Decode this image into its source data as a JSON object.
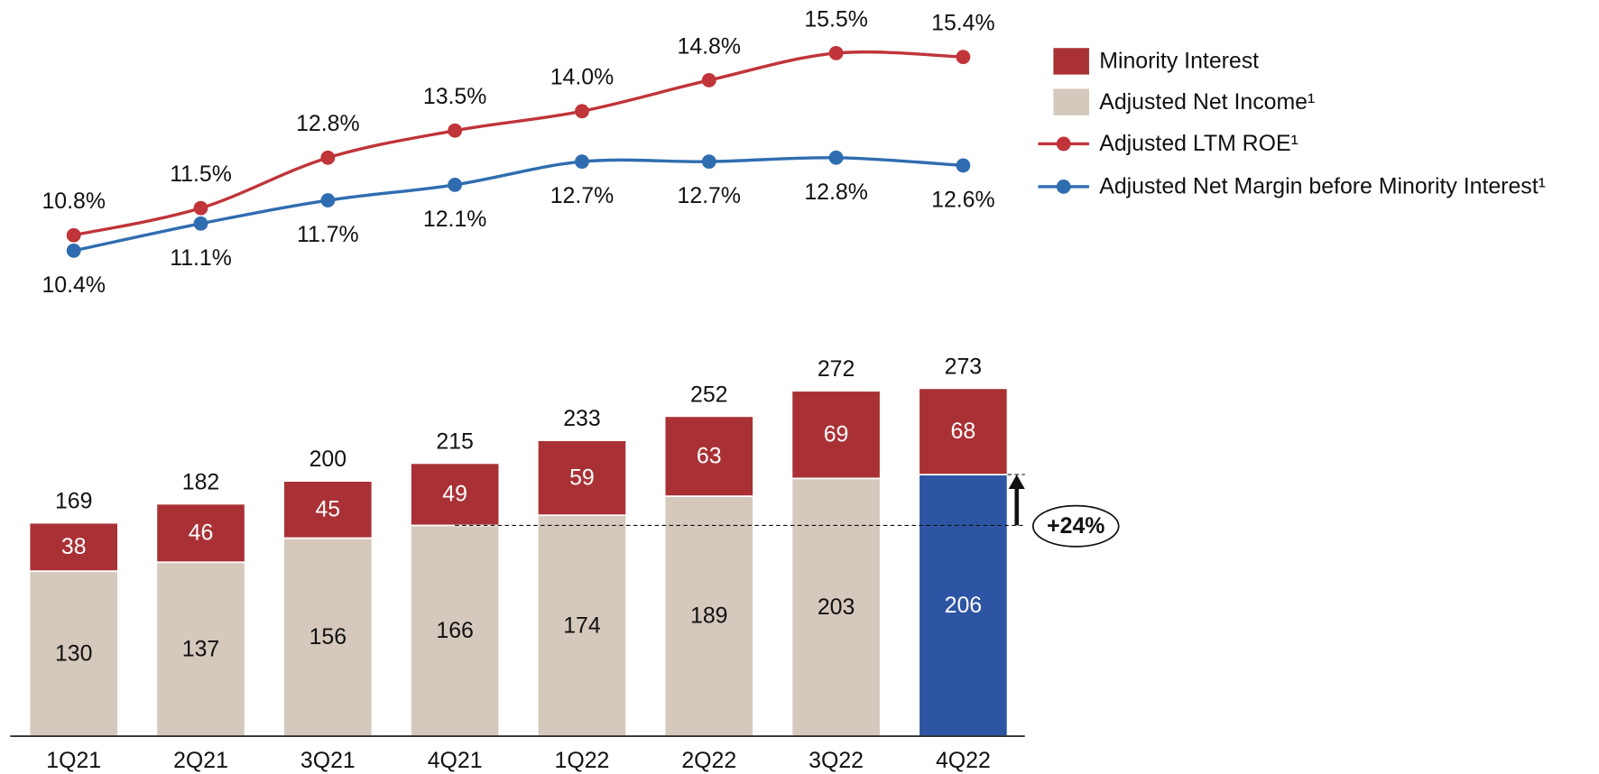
{
  "chart_data": {
    "type": "bar-line",
    "categories": [
      "1Q21",
      "2Q21",
      "3Q21",
      "4Q21",
      "1Q22",
      "2Q22",
      "3Q22",
      "4Q22"
    ],
    "series": [
      {
        "name": "Adjusted Net Income¹",
        "type": "bar",
        "color": "#d5c8bc",
        "colors": [
          "#d5c8bc",
          "#d5c8bc",
          "#d5c8bc",
          "#d5c8bc",
          "#d5c8bc",
          "#d5c8bc",
          "#d5c8bc",
          "#2e54a4"
        ],
        "values": [
          130,
          137,
          156,
          166,
          174,
          189,
          203,
          206
        ]
      },
      {
        "name": "Minority Interest",
        "type": "bar",
        "color": "#a93135",
        "values": [
          38,
          46,
          45,
          49,
          59,
          63,
          69,
          68
        ]
      },
      {
        "name": "Adjusted LTM ROE¹",
        "type": "line",
        "axis": "y2",
        "color": "#c0343a",
        "values": [
          10.8,
          11.5,
          12.8,
          13.5,
          14.0,
          14.8,
          15.5,
          15.4
        ],
        "value_labels": [
          "10.8%",
          "11.5%",
          "12.8%",
          "13.5%",
          "14.0%",
          "14.8%",
          "15.5%",
          "15.4%"
        ]
      },
      {
        "name": "Adjusted Net Margin before Minority Interest¹",
        "type": "line",
        "axis": "y2",
        "color": "#2f6db0",
        "values": [
          10.4,
          11.1,
          11.7,
          12.1,
          12.7,
          12.7,
          12.8,
          12.6
        ],
        "value_labels": [
          "10.4%",
          "11.1%",
          "11.7%",
          "12.1%",
          "12.7%",
          "12.7%",
          "12.8%",
          "12.6%"
        ]
      }
    ],
    "totals": [
      169,
      182,
      200,
      215,
      233,
      252,
      272,
      273
    ],
    "annotation": "+24%",
    "ylim": [
      0,
      275
    ],
    "y2lim": [
      8,
      16
    ],
    "legend": "top-right"
  }
}
